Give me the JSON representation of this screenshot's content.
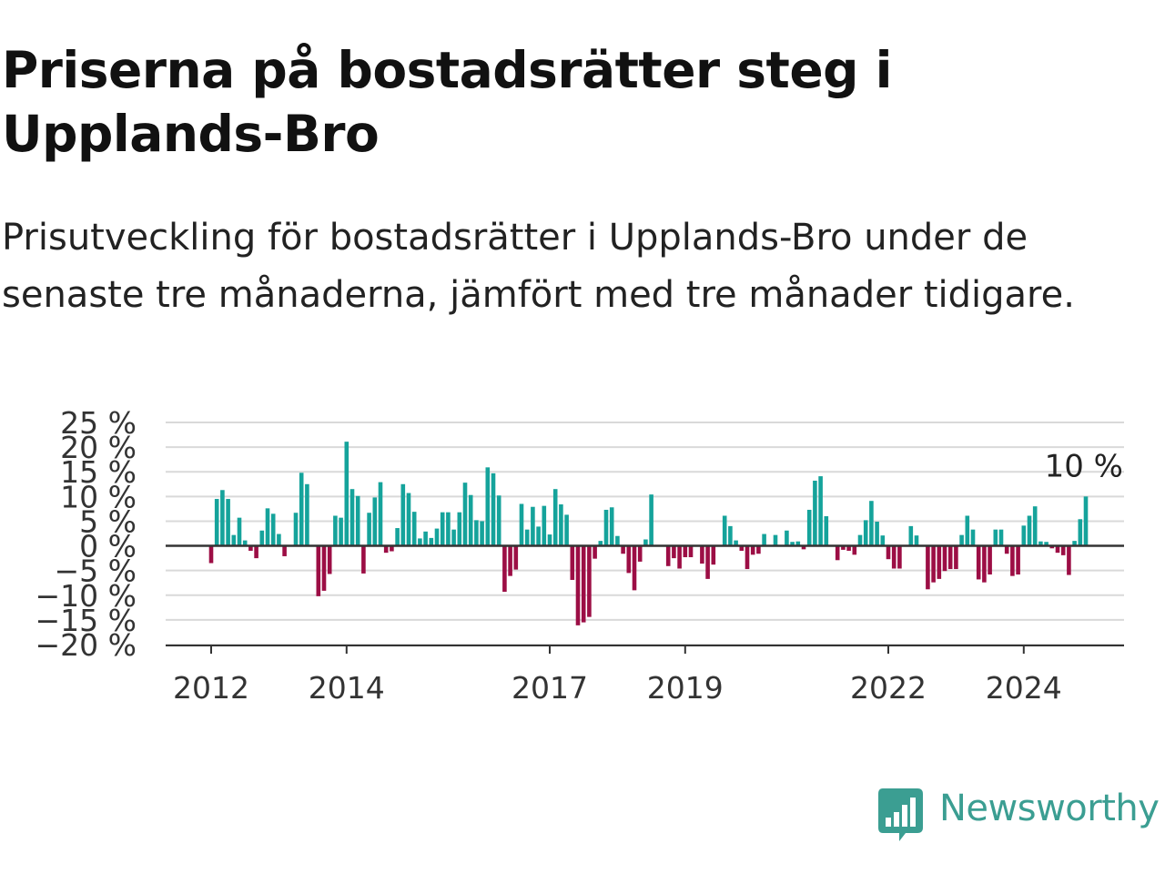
{
  "title": "Priserna på bostadsrätter steg i Upplands-Bro",
  "subtitle": "Prisutveckling för bostadsrätter i Upplands-Bro under de senaste tre månaderna, jämfört med tre månader tidigare.",
  "logo": {
    "text": "Newsworthy",
    "icon": "bar-chart-speech-bubble-icon"
  },
  "colors": {
    "positive": "#15a39b",
    "negative": "#9c0e45",
    "grid": "#d9d9d9",
    "axis": "#333333",
    "logo": "#3b9e92"
  },
  "chart_data": {
    "type": "bar",
    "title": "",
    "xlabel": "",
    "ylabel": "",
    "x_start": "2012-01",
    "x_tick_labels": [
      "2012",
      "2014",
      "2017",
      "2019",
      "2022",
      "2024"
    ],
    "y_ticks": [
      25,
      20,
      15,
      10,
      5,
      0,
      -5,
      -10,
      -15,
      -20
    ],
    "y_tick_labels": [
      "25 %",
      "20 %",
      "15 %",
      "10 %",
      "5 %",
      "0 %",
      "−5 %",
      "−10 %",
      "−15 %",
      "−20 %"
    ],
    "ylim": [
      -20,
      25
    ],
    "grid": true,
    "last_value_label": "10 %",
    "values": [
      -3.5,
      9.5,
      11.3,
      9.5,
      2.2,
      5.7,
      1.1,
      -1,
      -2.5,
      3.1,
      7.6,
      6.5,
      2.4,
      -2.1,
      0,
      6.7,
      14.8,
      12.5,
      0,
      -10.2,
      -9.1,
      -5.7,
      6.1,
      5.7,
      21.1,
      11.5,
      10.1,
      -5.6,
      6.7,
      9.8,
      12.9,
      -1.4,
      -1.1,
      3.6,
      12.5,
      10.7,
      6.9,
      1.5,
      2.9,
      1.6,
      3.5,
      6.8,
      6.8,
      3.3,
      6.8,
      12.8,
      10.3,
      5.2,
      5,
      15.9,
      14.7,
      10.2,
      -9.3,
      -6.1,
      -4.8,
      8.5,
      3.3,
      7.9,
      3.9,
      8.1,
      2.3,
      11.5,
      8.4,
      6.3,
      -6.9,
      -16.1,
      -15.5,
      -14.4,
      -2.6,
      1,
      7.3,
      7.8,
      2,
      -1.6,
      -5.5,
      -9,
      -3.2,
      1.3,
      10.4,
      0,
      0,
      -4.1,
      -2.5,
      -4.6,
      -2.3,
      -2.3,
      0,
      -3.6,
      -6.7,
      -3.8,
      0,
      6.1,
      4,
      1.1,
      -1,
      -4.7,
      -1.8,
      -1.6,
      2.4,
      0,
      2.2,
      0,
      3.1,
      0.8,
      0.9,
      -0.7,
      7.3,
      13.2,
      14.1,
      6,
      0,
      -2.9,
      -0.8,
      -1,
      -1.8,
      2.2,
      5.2,
      9.1,
      4.9,
      2.1,
      -2.7,
      -4.6,
      -4.6,
      0,
      4,
      2.1,
      0,
      -8.8,
      -7.4,
      -6.7,
      -5.1,
      -4.7,
      -4.7,
      2.2,
      6.1,
      3.3,
      -6.8,
      -7.4,
      -5.8,
      3.3,
      3.3,
      -1.6,
      -6.1,
      -5.8,
      4.1,
      6.1,
      8,
      0.9,
      0.8,
      -0.5,
      -1.4,
      -1.9,
      -5.9,
      1,
      5.4,
      10
    ]
  }
}
